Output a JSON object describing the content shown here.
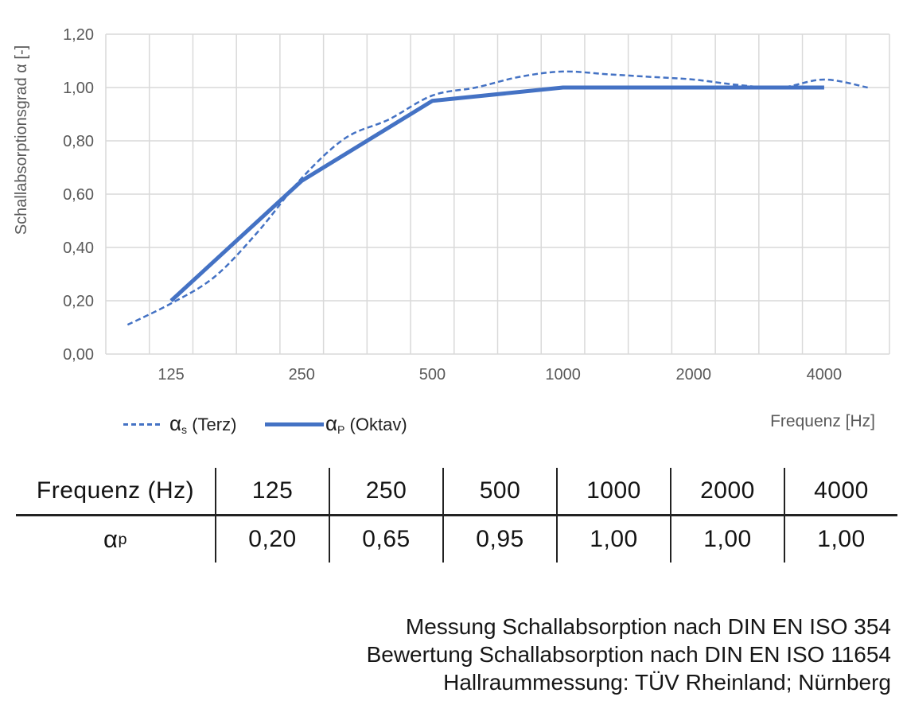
{
  "colors": {
    "series_line": "#4472C4",
    "grid": "#D9D9D9",
    "axis_text": "#595959",
    "table_line": "#222222"
  },
  "chart_data": {
    "type": "line",
    "x_scale": "log-category-thirds",
    "categories": [
      100,
      125,
      160,
      200,
      250,
      315,
      400,
      500,
      630,
      800,
      1000,
      1250,
      1600,
      2000,
      2500,
      3150,
      4000,
      5000
    ],
    "x_tick_labels": [
      "125",
      "250",
      "500",
      "1000",
      "2000",
      "4000"
    ],
    "x_tick_category_indexes": [
      1,
      4,
      7,
      10,
      13,
      16
    ],
    "y_tick_labels": [
      "0,00",
      "0,20",
      "0,40",
      "0,60",
      "0,80",
      "1,00",
      "1,20"
    ],
    "ylim": [
      0,
      1.2
    ],
    "y_tick_step": 0.2,
    "grid": true,
    "title": "",
    "xlabel": "Frequenz [Hz]",
    "ylabel": "Schallabsorptionsgrad α [-]",
    "legend_position": "bottom-left",
    "series": [
      {
        "name": "αs (Terz)",
        "style": "dashed",
        "smooth": true,
        "x": [
          100,
          125,
          160,
          200,
          250,
          315,
          400,
          500,
          630,
          800,
          1000,
          1250,
          1600,
          2000,
          2500,
          3150,
          4000,
          5000
        ],
        "values": [
          0.11,
          0.19,
          0.29,
          0.46,
          0.66,
          0.81,
          0.88,
          0.97,
          1.0,
          1.04,
          1.06,
          1.05,
          1.04,
          1.03,
          1.01,
          1.0,
          1.03,
          1.0
        ]
      },
      {
        "name": "αP (Oktav)",
        "style": "solid",
        "smooth": false,
        "x": [
          125,
          250,
          500,
          1000,
          2000,
          4000
        ],
        "values": [
          0.2,
          0.65,
          0.95,
          1.0,
          1.0,
          1.0
        ]
      }
    ]
  },
  "legend": {
    "terz": {
      "symbol": "α",
      "sub": "s",
      "rest": " (Terz)"
    },
    "oktav": {
      "symbol": "α",
      "sub": "P",
      "rest": " (Oktav)"
    }
  },
  "table": {
    "header_label": "Frequenz (Hz)",
    "col_headers": [
      "125",
      "250",
      "500",
      "1000",
      "2000",
      "4000"
    ],
    "row_label": {
      "symbol": "α",
      "sub": "p"
    },
    "row_values": [
      "0,20",
      "0,65",
      "0,95",
      "1,00",
      "1,00",
      "1,00"
    ]
  },
  "notes": {
    "lines": [
      "Messung Schallabsorption nach DIN EN ISO 354",
      "Bewertung Schallabsorption nach DIN EN ISO 11654",
      "Hallraummessung: TÜV Rheinland; Nürnberg"
    ]
  }
}
